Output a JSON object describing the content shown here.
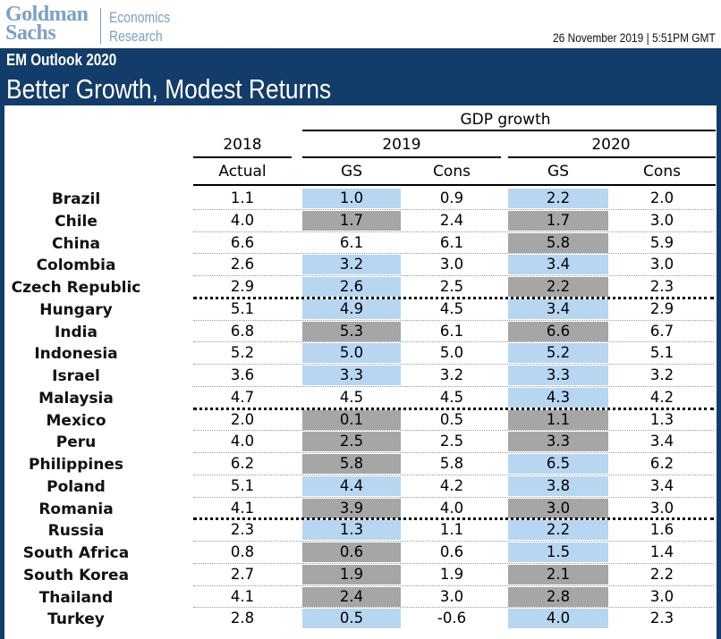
{
  "header": {
    "logo_line1": "Goldman",
    "logo_line2": "Sachs",
    "econ_line1": "Economics",
    "econ_line2": "Research",
    "date": "26 November 2019 | 5:51PM GMT"
  },
  "banner": {
    "subtitle": "EM Outlook 2020",
    "title": "Better Growth, Modest Returns"
  },
  "table": {
    "group_header": "GDP growth",
    "year_2018": "2018",
    "year_2019": "2019",
    "year_2020": "2020",
    "sub_actual": "Actual",
    "sub_gs19": "GS",
    "sub_cons19": "Cons",
    "sub_gs20": "GS",
    "sub_cons20": "Cons",
    "rows": [
      {
        "country": "Brazil",
        "actual": "1.1",
        "gs19": "1.0",
        "gs19_hl": "blue",
        "cons19": "0.9",
        "gs20": "2.2",
        "gs20_hl": "blue",
        "cons20": "2.0",
        "sep": "dotted"
      },
      {
        "country": "Chile",
        "actual": "4.0",
        "gs19": "1.7",
        "gs19_hl": "grey",
        "cons19": "2.4",
        "gs20": "1.7",
        "gs20_hl": "grey",
        "cons20": "3.0",
        "sep": "dotted"
      },
      {
        "country": "China",
        "actual": "6.6",
        "gs19": "6.1",
        "gs19_hl": "none",
        "cons19": "6.1",
        "gs20": "5.8",
        "gs20_hl": "grey",
        "cons20": "5.9",
        "sep": "dotted"
      },
      {
        "country": "Colombia",
        "actual": "2.6",
        "gs19": "3.2",
        "gs19_hl": "blue",
        "cons19": "3.0",
        "gs20": "3.4",
        "gs20_hl": "blue",
        "cons20": "3.0",
        "sep": "dotted"
      },
      {
        "country": "Czech Republic",
        "actual": "2.9",
        "gs19": "2.6",
        "gs19_hl": "blue",
        "cons19": "2.5",
        "gs20": "2.2",
        "gs20_hl": "grey",
        "cons20": "2.3",
        "sep": "bold"
      },
      {
        "country": "Hungary",
        "actual": "5.1",
        "gs19": "4.9",
        "gs19_hl": "blue",
        "cons19": "4.5",
        "gs20": "3.4",
        "gs20_hl": "blue",
        "cons20": "2.9",
        "sep": "dotted"
      },
      {
        "country": "India",
        "actual": "6.8",
        "gs19": "5.3",
        "gs19_hl": "grey",
        "cons19": "6.1",
        "gs20": "6.6",
        "gs20_hl": "grey",
        "cons20": "6.7",
        "sep": "dotted"
      },
      {
        "country": "Indonesia",
        "actual": "5.2",
        "gs19": "5.0",
        "gs19_hl": "blue",
        "cons19": "5.0",
        "gs20": "5.2",
        "gs20_hl": "blue",
        "cons20": "5.1",
        "sep": "dotted"
      },
      {
        "country": "Israel",
        "actual": "3.6",
        "gs19": "3.3",
        "gs19_hl": "blue",
        "cons19": "3.2",
        "gs20": "3.3",
        "gs20_hl": "blue",
        "cons20": "3.2",
        "sep": "dotted"
      },
      {
        "country": "Malaysia",
        "actual": "4.7",
        "gs19": "4.5",
        "gs19_hl": "none",
        "cons19": "4.5",
        "gs20": "4.3",
        "gs20_hl": "blue",
        "cons20": "4.2",
        "sep": "bold"
      },
      {
        "country": "Mexico",
        "actual": "2.0",
        "gs19": "0.1",
        "gs19_hl": "grey",
        "cons19": "0.5",
        "gs20": "1.1",
        "gs20_hl": "grey",
        "cons20": "1.3",
        "sep": "dotted"
      },
      {
        "country": "Peru",
        "actual": "4.0",
        "gs19": "2.5",
        "gs19_hl": "grey",
        "cons19": "2.5",
        "gs20": "3.3",
        "gs20_hl": "grey",
        "cons20": "3.4",
        "sep": "dotted"
      },
      {
        "country": "Philippines",
        "actual": "6.2",
        "gs19": "5.8",
        "gs19_hl": "grey",
        "cons19": "5.8",
        "gs20": "6.5",
        "gs20_hl": "blue",
        "cons20": "6.2",
        "sep": "dotted"
      },
      {
        "country": "Poland",
        "actual": "5.1",
        "gs19": "4.4",
        "gs19_hl": "blue",
        "cons19": "4.2",
        "gs20": "3.8",
        "gs20_hl": "blue",
        "cons20": "3.4",
        "sep": "dotted"
      },
      {
        "country": "Romania",
        "actual": "4.1",
        "gs19": "3.9",
        "gs19_hl": "grey",
        "cons19": "4.0",
        "gs20": "3.0",
        "gs20_hl": "grey",
        "cons20": "3.0",
        "sep": "bold"
      },
      {
        "country": "Russia",
        "actual": "2.3",
        "gs19": "1.3",
        "gs19_hl": "blue",
        "cons19": "1.1",
        "gs20": "2.2",
        "gs20_hl": "blue",
        "cons20": "1.6",
        "sep": "dotted"
      },
      {
        "country": "South Africa",
        "actual": "0.8",
        "gs19": "0.6",
        "gs19_hl": "grey",
        "cons19": "0.6",
        "gs20": "1.5",
        "gs20_hl": "blue",
        "cons20": "1.4",
        "sep": "dotted"
      },
      {
        "country": "South Korea",
        "actual": "2.7",
        "gs19": "1.9",
        "gs19_hl": "grey",
        "cons19": "1.9",
        "gs20": "2.1",
        "gs20_hl": "grey",
        "cons20": "2.2",
        "sep": "dotted"
      },
      {
        "country": "Thailand",
        "actual": "4.1",
        "gs19": "2.4",
        "gs19_hl": "grey",
        "cons19": "3.0",
        "gs20": "2.8",
        "gs20_hl": "grey",
        "cons20": "3.0",
        "sep": "dotted"
      },
      {
        "country": "Turkey",
        "actual": "2.8",
        "gs19": "0.5",
        "gs19_hl": "blue",
        "cons19": "-0.6",
        "gs20": "4.0",
        "gs20_hl": "blue",
        "cons20": "2.3",
        "sep": "none"
      }
    ]
  }
}
